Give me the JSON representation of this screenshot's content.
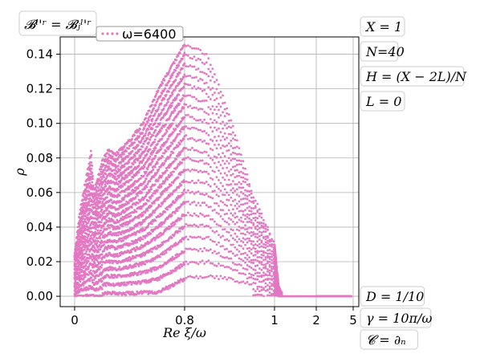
{
  "chart_data": {
    "type": "scatter",
    "xlabel": "Re ξ/ω",
    "ylabel": "ρ",
    "title_box": "𝓑ˡ'ʳ = 𝓑ⱼˡ'ʳ",
    "x_tick_labels": [
      "0",
      "0.8",
      "1",
      "2",
      "5"
    ],
    "x_tick_positions": [
      0,
      0.8,
      1,
      2,
      5
    ],
    "ylim": [
      -0.006,
      0.15
    ],
    "y_ticks": [
      0.0,
      0.02,
      0.04,
      0.06,
      0.08,
      0.1,
      0.12,
      0.14
    ],
    "y_tick_labels": [
      "0.00",
      "0.02",
      "0.04",
      "0.06",
      "0.08",
      "0.10",
      "0.12",
      "0.14"
    ],
    "grid": true,
    "legend_position": "top-left",
    "series": [
      {
        "name": "ω=6400",
        "color": "#e377c2",
        "envelope": [
          [
            0.0,
            0.025
          ],
          [
            0.04,
            0.05
          ],
          [
            0.1,
            0.075
          ],
          [
            0.12,
            0.084
          ],
          [
            0.14,
            0.06
          ],
          [
            0.2,
            0.078
          ],
          [
            0.25,
            0.085
          ],
          [
            0.3,
            0.082
          ],
          [
            0.4,
            0.09
          ],
          [
            0.5,
            0.1
          ],
          [
            0.6,
            0.118
          ],
          [
            0.7,
            0.132
          ],
          [
            0.8,
            0.146
          ],
          [
            0.85,
            0.14
          ],
          [
            0.9,
            0.105
          ],
          [
            0.95,
            0.06
          ],
          [
            1.0,
            0.03
          ],
          [
            1.1,
            0.005
          ],
          [
            1.2,
            0.0
          ],
          [
            2.0,
            0.0
          ],
          [
            4.8,
            0.0
          ]
        ]
      }
    ]
  },
  "annotations_right_top": [
    "X = 1",
    "N=40",
    "H = (X − 2L)/N",
    "L = 0"
  ],
  "annotations_right_bottom": [
    "D = 1/10",
    "γ = 10π/ω",
    "𝓒 = ∂ₙ"
  ]
}
